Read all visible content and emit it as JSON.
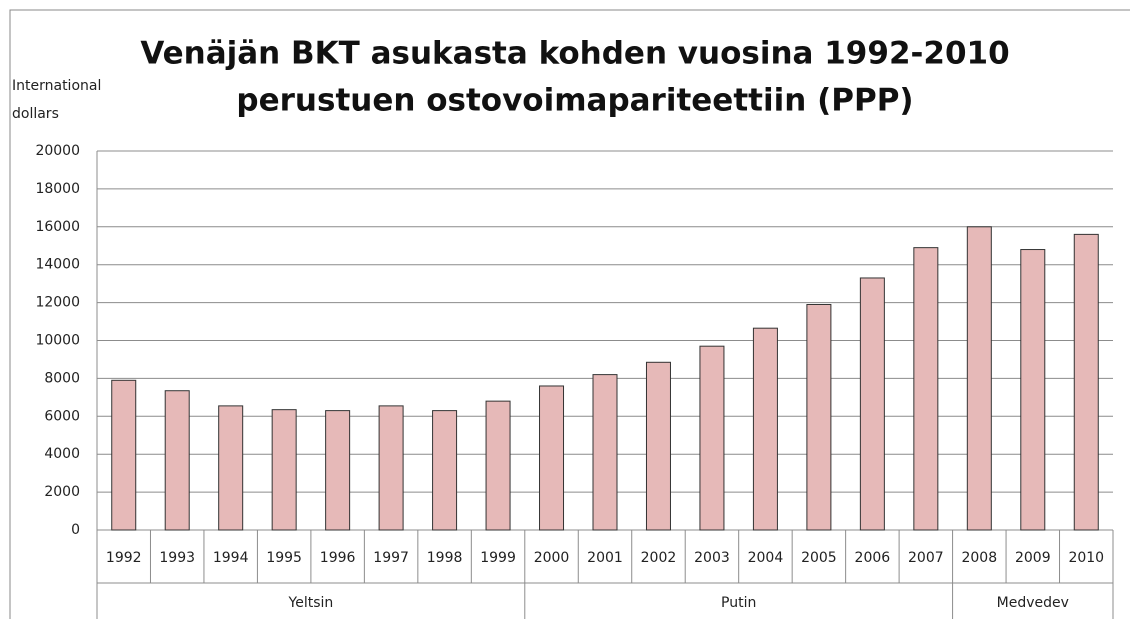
{
  "chart_data": {
    "type": "bar",
    "title": [
      "Venäjän BKT asukasta kohden vuosina 1992-2010",
      "perustuen ostovoimapariteettiin (PPP)"
    ],
    "ylabel": [
      "International",
      "dollars"
    ],
    "color": "#e6b9b8",
    "ylim": [
      0,
      20000
    ],
    "yticks": [
      0,
      2000,
      4000,
      6000,
      8000,
      10000,
      12000,
      14000,
      16000,
      18000,
      20000
    ],
    "grid": true,
    "groups": [
      {
        "name": "Yeltsin",
        "categories": [
          "1992",
          "1993",
          "1994",
          "1995",
          "1996",
          "1997",
          "1998",
          "1999"
        ],
        "values": [
          7900,
          7350,
          6550,
          6350,
          6300,
          6550,
          6300,
          6800
        ]
      },
      {
        "name": "Putin",
        "categories": [
          "2000",
          "2001",
          "2002",
          "2003",
          "2004",
          "2005",
          "2006",
          "2007"
        ],
        "values": [
          7600,
          8200,
          8850,
          9700,
          10650,
          11900,
          13300,
          14900
        ]
      },
      {
        "name": "Medvedev",
        "categories": [
          "2008",
          "2009",
          "2010"
        ],
        "values": [
          16000,
          14800,
          15600
        ]
      }
    ]
  }
}
